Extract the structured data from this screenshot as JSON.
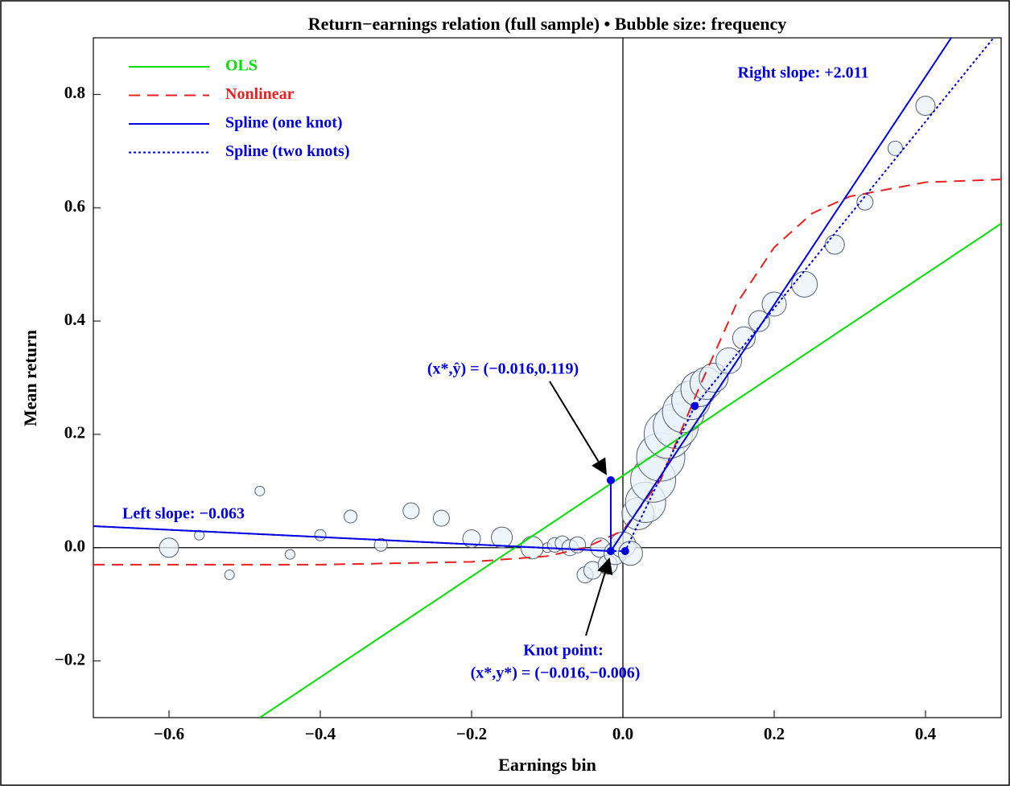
{
  "chart_data": {
    "type": "bubble",
    "title": "Return−earnings relation (full sample) • Bubble size: frequency",
    "x_label": "Earnings bin",
    "y_label": "Mean return",
    "xlim": [
      -0.7,
      0.5
    ],
    "ylim": [
      -0.3,
      0.9
    ],
    "xticks": [
      {
        "value": -0.6,
        "label": "−0.6"
      },
      {
        "value": -0.4,
        "label": "−0.4"
      },
      {
        "value": -0.2,
        "label": "−0.2"
      },
      {
        "value": 0,
        "label": "0.0"
      },
      0.2,
      0.4
    ],
    "yticks": [
      {
        "value": -0.2,
        "label": "−0.2"
      },
      {
        "value": 0,
        "label": "0.0"
      },
      0.2,
      0.4,
      0.6,
      0.8
    ],
    "bubbles": {
      "color": "#e8f1fa",
      "x": [
        -0.6,
        -0.56,
        -0.52,
        -0.48,
        -0.44,
        -0.4,
        -0.36,
        -0.32,
        -0.28,
        -0.24,
        -0.2,
        -0.16,
        -0.12,
        -0.1,
        -0.09,
        -0.08,
        -0.07,
        -0.06,
        -0.05,
        -0.04,
        -0.03,
        -0.02,
        -0.01,
        0.0,
        0.01,
        0.02,
        0.03,
        0.04,
        0.05,
        0.06,
        0.07,
        0.08,
        0.09,
        0.1,
        0.11,
        0.12,
        0.14,
        0.16,
        0.18,
        0.2,
        0.24,
        0.28,
        0.32,
        0.36,
        0.4
      ],
      "values": [
        0.0,
        0.022,
        -0.048,
        0.1,
        -0.012,
        0.022,
        0.055,
        0.005,
        0.065,
        0.052,
        0.016,
        0.018,
        0.0,
        0.0,
        0.005,
        0.008,
        0.0,
        0.005,
        -0.048,
        -0.04,
        0.0,
        -0.03,
        -0.01,
        0.005,
        -0.01,
        0.06,
        0.08,
        0.12,
        0.16,
        0.2,
        0.215,
        0.24,
        0.26,
        0.28,
        0.29,
        0.3,
        0.33,
        0.37,
        0.4,
        0.43,
        0.465,
        0.535,
        0.61,
        0.705,
        0.78
      ],
      "sizes": [
        12,
        6,
        6,
        6,
        6,
        7,
        8,
        8,
        10,
        10,
        11,
        13,
        14,
        6,
        9,
        9,
        10,
        10,
        10,
        11,
        12,
        12,
        14,
        16,
        15,
        20,
        25,
        28,
        30,
        30,
        28,
        26,
        24,
        22,
        20,
        18,
        16,
        14,
        13,
        15,
        16,
        12,
        10,
        9,
        12
      ]
    },
    "lines": [
      {
        "name": "OLS",
        "color": "#00e000",
        "dash": "none",
        "x": [
          -0.48,
          0.5
        ],
        "values": [
          -0.3,
          0.572
        ]
      },
      {
        "name": "Nonlinear",
        "color": "#e82020",
        "dash": "14 9",
        "x": [
          -0.7,
          -0.4,
          -0.2,
          -0.1,
          -0.05,
          0.0,
          0.05,
          0.1,
          0.15,
          0.2,
          0.25,
          0.3,
          0.4,
          0.5
        ],
        "values": [
          -0.03,
          -0.03,
          -0.025,
          -0.015,
          0.0,
          0.03,
          0.12,
          0.28,
          0.43,
          0.53,
          0.59,
          0.62,
          0.645,
          0.65
        ]
      },
      {
        "name": "Spline (one knot)",
        "color": "#0000e0",
        "dash": "none",
        "x": [
          -0.7,
          -0.016,
          0.434
        ],
        "values": [
          0.038,
          -0.006,
          0.9
        ]
      },
      {
        "name": "Spline (two knots)",
        "color": "#0000e0",
        "dash": "3 3",
        "x": [
          -0.7,
          -0.016,
          0.003,
          0.095,
          0.49
        ],
        "values": [
          0.038,
          -0.006,
          -0.006,
          0.25,
          0.9
        ]
      }
    ],
    "points": {
      "color": "#0000e0",
      "x": [
        -0.016,
        -0.016,
        0.003,
        0.095
      ],
      "values": [
        0.119,
        -0.006,
        -0.006,
        0.25
      ]
    },
    "annotations": [
      "Right slope: +2.011",
      "Left slope: −0.063",
      "(x*,ŷ) = (−0.016,0.119)",
      "Knot point:",
      "(x*,y*) = (−0.016,−0.006)"
    ]
  }
}
